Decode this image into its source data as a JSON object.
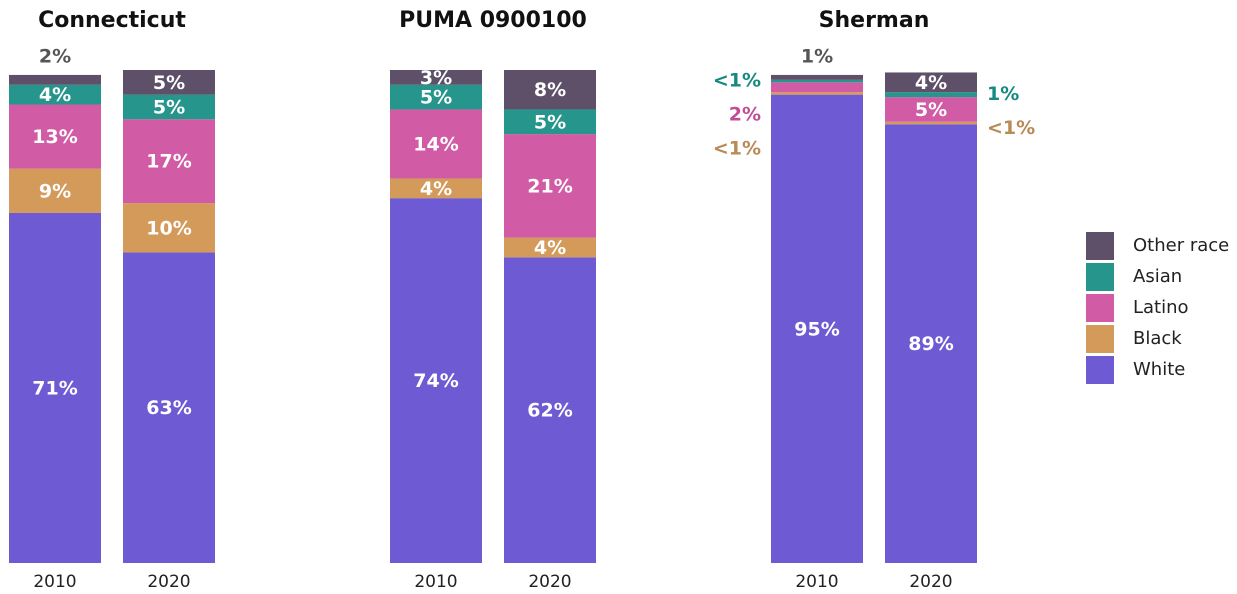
{
  "chart_data": [
    {
      "type": "bar",
      "stacked": true,
      "title": "Connecticut",
      "categories": [
        "2010",
        "2020"
      ],
      "ylim": [
        0,
        100
      ],
      "series": [
        {
          "name": "White",
          "color": "#6e5bd3",
          "values": [
            71,
            63
          ],
          "value_labels": [
            "71%",
            "63%"
          ]
        },
        {
          "name": "Black",
          "color": "#d39a5a",
          "values": [
            9,
            10
          ],
          "value_labels": [
            "9%",
            "10%"
          ]
        },
        {
          "name": "Latino",
          "color": "#d15ba5",
          "values": [
            13,
            17
          ],
          "value_labels": [
            "13%",
            "17%"
          ]
        },
        {
          "name": "Asian",
          "color": "#26958c",
          "values": [
            4,
            5
          ],
          "value_labels": [
            "4%",
            "5%"
          ]
        },
        {
          "name": "Other race",
          "color": "#5d5068",
          "values": [
            2,
            5
          ],
          "value_labels": [
            "2%",
            "5%"
          ]
        }
      ]
    },
    {
      "type": "bar",
      "stacked": true,
      "title": "PUMA 0900100",
      "categories": [
        "2010",
        "2020"
      ],
      "ylim": [
        0,
        100
      ],
      "series": [
        {
          "name": "White",
          "color": "#6e5bd3",
          "values": [
            74,
            62
          ],
          "value_labels": [
            "74%",
            "62%"
          ]
        },
        {
          "name": "Black",
          "color": "#d39a5a",
          "values": [
            4,
            4
          ],
          "value_labels": [
            "4%",
            "4%"
          ]
        },
        {
          "name": "Latino",
          "color": "#d15ba5",
          "values": [
            14,
            21
          ],
          "value_labels": [
            "14%",
            "21%"
          ]
        },
        {
          "name": "Asian",
          "color": "#26958c",
          "values": [
            5,
            5
          ],
          "value_labels": [
            "5%",
            "5%"
          ]
        },
        {
          "name": "Other race",
          "color": "#5d5068",
          "values": [
            3,
            8
          ],
          "value_labels": [
            "3%",
            "8%"
          ]
        }
      ]
    },
    {
      "type": "bar",
      "stacked": true,
      "title": "Sherman",
      "categories": [
        "2010",
        "2020"
      ],
      "ylim": [
        0,
        100
      ],
      "series": [
        {
          "name": "White",
          "color": "#6e5bd3",
          "values": [
            95,
            89
          ],
          "value_labels": [
            "95%",
            "89%"
          ]
        },
        {
          "name": "Black",
          "color": "#d39a5a",
          "values": [
            0.5,
            0.5
          ],
          "value_labels": [
            "<1%",
            "<1%"
          ]
        },
        {
          "name": "Latino",
          "color": "#d15ba5",
          "values": [
            2,
            5
          ],
          "value_labels": [
            "2%",
            "5%"
          ]
        },
        {
          "name": "Asian",
          "color": "#26958c",
          "values": [
            0.5,
            1
          ],
          "value_labels": [
            "<1%",
            "1%"
          ]
        },
        {
          "name": "Other race",
          "color": "#5d5068",
          "values": [
            1,
            4
          ],
          "value_labels": [
            "1%",
            "4%"
          ]
        }
      ]
    }
  ]
}
